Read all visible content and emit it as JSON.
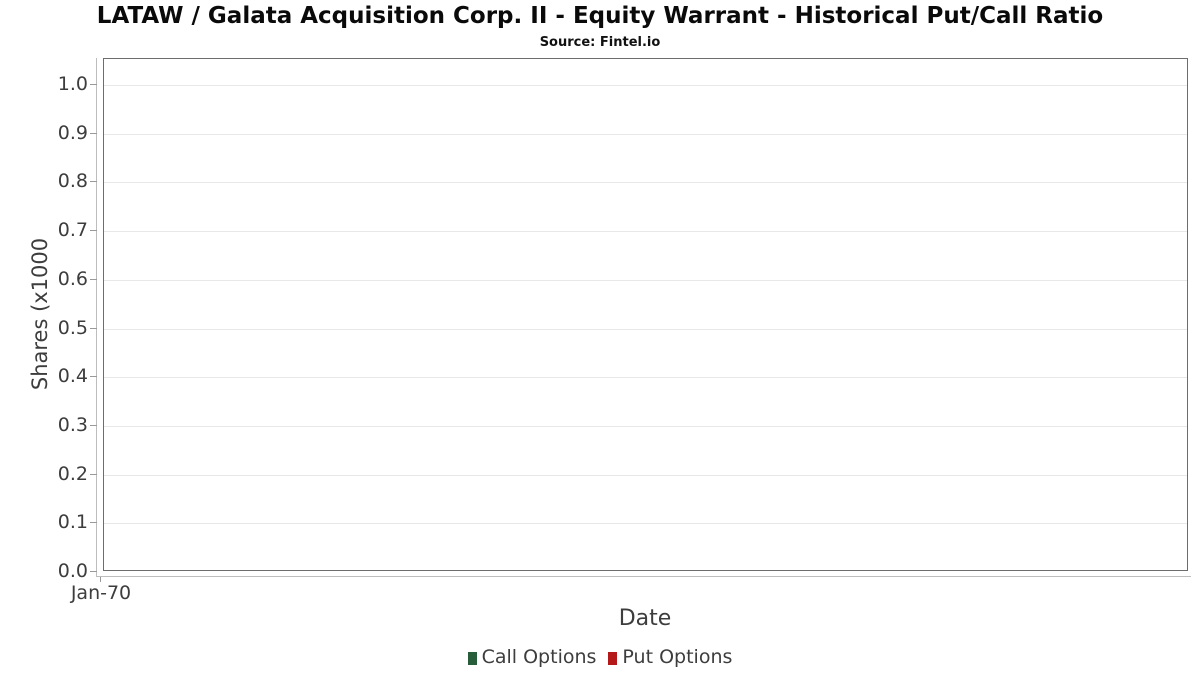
{
  "title": "LATAW / Galata Acquisition Corp. II - Equity Warrant - Historical Put/Call Ratio",
  "subtitle": "Source: Fintel.io",
  "chart_data": {
    "type": "line",
    "title": "LATAW / Galata Acquisition Corp. II - Equity Warrant - Historical Put/Call Ratio",
    "subtitle": "Source: Fintel.io",
    "xlabel": "Date",
    "ylabel": "Shares (x1000",
    "x_ticks": [
      "Jan-70"
    ],
    "y_ticks": [
      "1.0",
      "0.9",
      "0.8",
      "0.7",
      "0.6",
      "0.5",
      "0.4",
      "0.3",
      "0.2",
      "0.1",
      "0.0"
    ],
    "ylim": [
      0.0,
      1.05
    ],
    "grid": true,
    "legend_position": "bottom",
    "series": [
      {
        "name": "Call Options",
        "color": "#275d38",
        "x": [],
        "values": []
      },
      {
        "name": "Put Options",
        "color": "#b51818",
        "x": [],
        "values": []
      }
    ]
  },
  "colors": {
    "background": "#ffffff",
    "plot_border": "#6d6d6d",
    "gridline": "#e8e8e8",
    "axis_line": "#bdbdbd",
    "tick_mark": "#9a9a9a",
    "axis_text": "#3d3d3d",
    "title_text": "#0a0a0a"
  }
}
